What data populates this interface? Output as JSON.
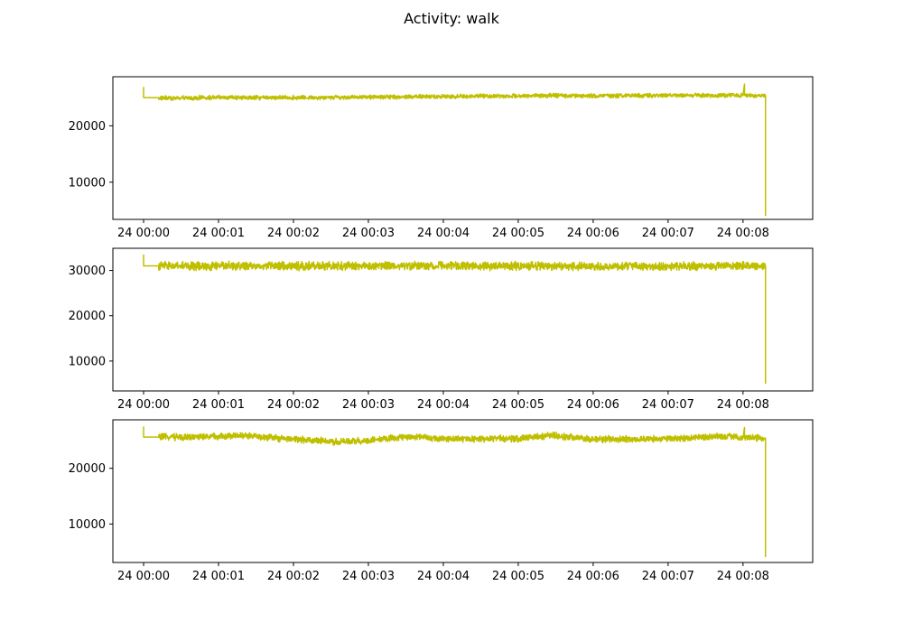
{
  "figure": {
    "title": "Activity: walk"
  },
  "colors": {
    "series": "#bfbf00",
    "axes": "#000000",
    "background": "#ffffff"
  },
  "chart_data": [
    {
      "type": "line",
      "x_ticks": [
        "24 00:00",
        "24 00:01",
        "24 00:02",
        "24 00:03",
        "24 00:04",
        "24 00:05",
        "24 00:06",
        "24 00:07",
        "24 00:08"
      ],
      "y_ticks": [
        10000,
        20000
      ],
      "x_unit": "minutes",
      "xlim": [
        -0.41,
        8.93
      ],
      "ylim": [
        3400,
        28700
      ],
      "grid": false,
      "legend": "none",
      "series": [
        {
          "values_summary": "noisy signal near 24800-25400 from 00:00.15 to 00:08.3",
          "x": [
            0.0,
            0.0,
            0.01,
            0.2,
            0.2,
            1.0,
            2.0,
            3.0,
            4.0,
            5.0,
            5.45,
            6.0,
            7.0,
            8.0,
            8.02,
            8.02,
            8.3,
            8.3
          ],
          "y": [
            26900,
            25000,
            25000,
            25000,
            24900,
            25000,
            25000,
            25100,
            25200,
            25300,
            25400,
            25300,
            25400,
            25400,
            27400,
            25400,
            25400,
            4000
          ],
          "noise": 450
        }
      ]
    },
    {
      "type": "line",
      "x_ticks": [
        "24 00:00",
        "24 00:01",
        "24 00:02",
        "24 00:03",
        "24 00:04",
        "24 00:05",
        "24 00:06",
        "24 00:07",
        "24 00:08"
      ],
      "y_ticks": [
        10000,
        20000,
        30000
      ],
      "x_unit": "minutes",
      "xlim": [
        -0.41,
        8.93
      ],
      "ylim": [
        3400,
        34900
      ],
      "grid": false,
      "legend": "none",
      "series": [
        {
          "values_summary": "noisy signal near 30500-31500 from 00:00.15 to 00:08.3",
          "x": [
            0.0,
            0.0,
            0.01,
            0.2,
            0.2,
            1.0,
            2.0,
            3.0,
            3.5,
            4.0,
            5.0,
            5.45,
            6.0,
            7.0,
            7.5,
            8.0,
            8.3,
            8.3
          ],
          "y": [
            33500,
            31000,
            31000,
            31000,
            31000,
            31000,
            31000,
            31000,
            31100,
            31100,
            31000,
            31000,
            30900,
            30900,
            31000,
            31100,
            31000,
            5000
          ],
          "noise": 1100
        }
      ]
    },
    {
      "type": "line",
      "x_ticks": [
        "24 00:00",
        "24 00:01",
        "24 00:02",
        "24 00:03",
        "24 00:04",
        "24 00:05",
        "24 00:06",
        "24 00:07",
        "24 00:08"
      ],
      "y_ticks": [
        10000,
        20000
      ],
      "x_unit": "minutes",
      "xlim": [
        -0.41,
        8.93
      ],
      "ylim": [
        3100,
        28700
      ],
      "grid": false,
      "legend": "none",
      "series": [
        {
          "values_summary": "noisy signal near 24800-26000 from 00:00.15 to 00:08.3",
          "x": [
            0.0,
            0.0,
            0.01,
            0.2,
            0.2,
            1.0,
            1.3,
            2.0,
            2.6,
            3.0,
            3.5,
            4.0,
            5.0,
            5.45,
            6.0,
            7.0,
            7.8,
            8.0,
            8.02,
            8.02,
            8.3,
            8.3
          ],
          "y": [
            27500,
            25600,
            25600,
            25600,
            25600,
            25700,
            25900,
            25200,
            24800,
            25000,
            25700,
            25300,
            25300,
            25900,
            25200,
            25300,
            25800,
            25500,
            27300,
            25500,
            25400,
            4100
          ],
          "noise": 700
        }
      ]
    }
  ]
}
